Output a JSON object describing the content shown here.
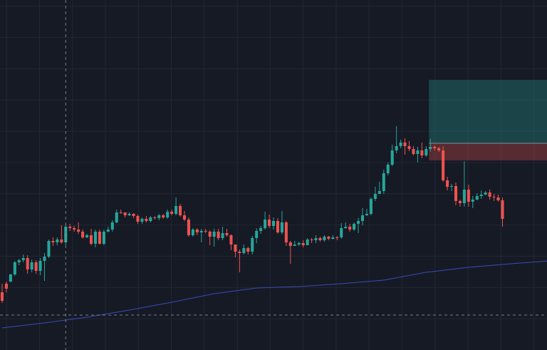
{
  "theme": {
    "background": "#161a25",
    "grid": "#232733",
    "bullish": "#26a69a",
    "bearish": "#ef5350",
    "crosshair": "#9598a1",
    "moving_average": "#3a4bb8",
    "target_zone": "#26a69a",
    "stop_zone": "#ef5350"
  },
  "chart_data": {
    "type": "candlestick",
    "price_range": [
      0,
      491
    ],
    "x_range": [
      0,
      129
    ],
    "grid": true,
    "gridlines": {
      "vertical_count": 17,
      "horizontal_count": 11
    },
    "crosshair": {
      "bar": 15,
      "price": 442
    },
    "candles": [
      [
        410,
        422,
        398,
        425
      ],
      [
        398,
        405,
        395,
        410
      ],
      [
        395,
        385,
        384,
        396
      ],
      [
        385,
        368,
        366,
        387
      ],
      [
        368,
        365,
        363,
        372
      ],
      [
        365,
        362,
        357,
        368
      ],
      [
        362,
        378,
        358,
        384
      ],
      [
        378,
        368,
        364,
        382
      ],
      [
        368,
        380,
        365,
        384
      ],
      [
        380,
        366,
        362,
        386
      ],
      [
        366,
        360,
        355,
        394
      ],
      [
        360,
        338,
        336,
        362
      ],
      [
        338,
        340,
        333,
        345
      ],
      [
        340,
        336,
        333,
        344
      ],
      [
        336,
        340,
        316,
        342
      ],
      [
        340,
        318,
        315,
        344
      ],
      [
        318,
        320,
        314,
        324
      ],
      [
        320,
        322,
        317,
        325
      ],
      [
        322,
        325,
        312,
        328
      ],
      [
        325,
        333,
        322,
        335
      ],
      [
        333,
        330,
        328,
        334
      ],
      [
        330,
        342,
        321,
        344
      ],
      [
        342,
        325,
        322,
        347
      ],
      [
        325,
        342,
        322,
        343
      ],
      [
        342,
        325,
        322,
        344
      ],
      [
        325,
        322,
        318,
        326
      ],
      [
        322,
        312,
        309,
        325
      ],
      [
        312,
        298,
        294,
        313
      ],
      [
        298,
        298,
        294,
        300
      ],
      [
        298,
        302,
        298,
        305
      ],
      [
        302,
        300,
        298,
        303
      ],
      [
        300,
        303,
        299,
        306
      ],
      [
        303,
        311,
        301,
        314
      ],
      [
        311,
        307,
        305,
        314
      ],
      [
        307,
        310,
        303,
        312
      ],
      [
        310,
        305,
        303,
        312
      ],
      [
        305,
        306,
        303,
        308
      ],
      [
        306,
        302,
        300,
        309
      ],
      [
        302,
        305,
        300,
        307
      ],
      [
        305,
        297,
        294,
        307
      ],
      [
        297,
        300,
        294,
        302
      ],
      [
        300,
        289,
        277,
        302
      ],
      [
        289,
        302,
        286,
        304
      ],
      [
        302,
        308,
        296,
        310
      ],
      [
        308,
        330,
        305,
        332
      ],
      [
        330,
        322,
        320,
        332
      ],
      [
        322,
        326,
        320,
        330
      ],
      [
        326,
        324,
        321,
        340
      ],
      [
        324,
        325,
        321,
        327
      ],
      [
        325,
        332,
        323,
        344
      ],
      [
        332,
        325,
        321,
        346
      ],
      [
        325,
        334,
        321,
        337
      ],
      [
        334,
        327,
        318,
        337
      ],
      [
        327,
        330,
        321,
        332
      ],
      [
        330,
        343,
        329,
        351
      ],
      [
        343,
        353,
        343,
        361
      ],
      [
        353,
        355,
        350,
        382
      ],
      [
        355,
        348,
        343,
        357
      ],
      [
        348,
        353,
        346,
        357
      ],
      [
        353,
        334,
        331,
        357
      ],
      [
        334,
        324,
        320,
        341
      ],
      [
        324,
        320,
        317,
        328
      ],
      [
        320,
        308,
        297,
        322
      ],
      [
        308,
        317,
        301,
        320
      ],
      [
        317,
        310,
        305,
        322
      ],
      [
        310,
        326,
        306,
        328
      ],
      [
        326,
        312,
        296,
        329
      ],
      [
        312,
        340,
        310,
        345
      ],
      [
        340,
        345,
        338,
        370
      ],
      [
        345,
        343,
        338,
        345
      ],
      [
        343,
        341,
        339,
        345
      ],
      [
        341,
        344,
        337,
        347
      ],
      [
        344,
        336,
        334,
        344
      ],
      [
        336,
        337,
        334,
        341
      ],
      [
        337,
        334,
        330,
        341
      ],
      [
        334,
        337,
        332,
        339
      ],
      [
        337,
        332,
        330,
        339
      ],
      [
        332,
        335,
        331,
        337
      ],
      [
        335,
        333,
        330,
        336
      ],
      [
        333,
        333,
        331,
        337
      ],
      [
        333,
        320,
        313,
        335
      ],
      [
        320,
        318,
        312,
        321
      ],
      [
        318,
        322,
        314,
        325
      ],
      [
        322,
        314,
        312,
        324
      ],
      [
        314,
        310,
        306,
        327
      ],
      [
        310,
        302,
        292,
        316
      ],
      [
        302,
        300,
        293,
        303
      ],
      [
        300,
        279,
        277,
        302
      ],
      [
        279,
        272,
        262,
        282
      ],
      [
        272,
        268,
        255,
        271
      ],
      [
        268,
        243,
        238,
        272
      ],
      [
        243,
        231,
        228,
        246
      ],
      [
        231,
        211,
        203,
        233
      ],
      [
        211,
        205,
        177,
        215
      ],
      [
        205,
        200,
        196,
        208
      ],
      [
        200,
        205,
        194,
        217
      ],
      [
        205,
        209,
        198,
        212
      ],
      [
        209,
        216,
        205,
        218
      ],
      [
        216,
        211,
        206,
        228
      ],
      [
        211,
        218,
        200,
        222
      ],
      [
        218,
        209,
        205,
        220
      ],
      [
        209,
        206,
        195,
        213
      ],
      [
        206,
        208,
        204,
        211
      ],
      [
        208,
        211,
        206,
        213
      ],
      [
        211,
        253,
        205,
        255
      ],
      [
        253,
        262,
        248,
        267
      ],
      [
        262,
        261,
        258,
        268
      ],
      [
        261,
        282,
        256,
        288
      ],
      [
        282,
        285,
        280,
        290
      ],
      [
        285,
        266,
        226,
        290
      ],
      [
        266,
        283,
        259,
        290
      ],
      [
        283,
        280,
        275,
        292
      ],
      [
        280,
        275,
        271,
        281
      ],
      [
        275,
        273,
        267,
        279
      ],
      [
        273,
        270,
        268,
        274
      ],
      [
        270,
        276,
        266,
        280
      ],
      [
        276,
        277,
        272,
        282
      ],
      [
        277,
        281,
        273,
        283
      ],
      [
        281,
        307,
        277,
        318
      ]
    ],
    "moving_average": [
      [
        0,
        460
      ],
      [
        10,
        453
      ],
      [
        20,
        445
      ],
      [
        30,
        435
      ],
      [
        40,
        424
      ],
      [
        50,
        412
      ],
      [
        60,
        404
      ],
      [
        70,
        402
      ],
      [
        80,
        398
      ],
      [
        90,
        393
      ],
      [
        100,
        382
      ],
      [
        110,
        375
      ],
      [
        120,
        370
      ],
      [
        129,
        366
      ]
    ],
    "position_tool": {
      "start_bar": 101,
      "target_price": 112,
      "entry_price": 201,
      "stop_price": 225
    }
  }
}
